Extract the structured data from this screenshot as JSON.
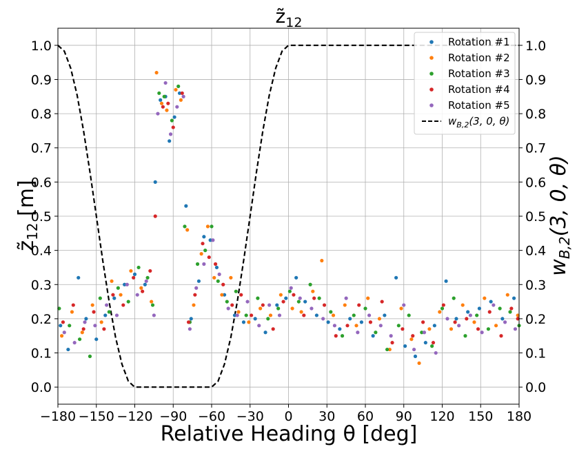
{
  "chart_data": {
    "type": "scatter",
    "title": "z̃",
    "title_sub": "12",
    "xlabel": "Relative Heading θ [deg]",
    "ylabel": "z̃",
    "ylabel_sub": "12",
    "ylabel_unit": " [m]",
    "y2label": "w",
    "y2label_sub": "B,2",
    "y2label_args": "(3, 0, θ)",
    "xlim": [
      -180,
      180
    ],
    "ylim": [
      -0.05,
      1.05
    ],
    "y2lim": [
      -0.05,
      1.05
    ],
    "xticks": [
      -180,
      -150,
      -120,
      -90,
      -60,
      -30,
      0,
      30,
      60,
      90,
      120,
      150,
      180
    ],
    "xtick_labels": [
      "−180",
      "−150",
      "−120",
      "−90",
      "−60",
      "−30",
      "0",
      "30",
      "60",
      "90",
      "120",
      "150",
      "180"
    ],
    "yticks": [
      0,
      0.1,
      0.2,
      0.3,
      0.4,
      0.5,
      0.6,
      0.7,
      0.8,
      0.9,
      1.0
    ],
    "ytick_labels": [
      "0.0",
      "0.1",
      "0.2",
      "0.3",
      "0.4",
      "0.5",
      "0.6",
      "0.7",
      "0.8",
      "0.9",
      "1.0"
    ],
    "grid": true,
    "legend_position": "top-right",
    "series": [
      {
        "name": "Rotation #1",
        "color": "#1f77b4",
        "points": [
          [
            -178,
            0.18
          ],
          [
            -172,
            0.11
          ],
          [
            -164,
            0.32
          ],
          [
            -158,
            0.2
          ],
          [
            -150,
            0.14
          ],
          [
            -143,
            0.21
          ],
          [
            -136,
            0.26
          ],
          [
            -128,
            0.3
          ],
          [
            -120,
            0.33
          ],
          [
            -112,
            0.3
          ],
          [
            -104,
            0.6
          ],
          [
            -100,
            0.84
          ],
          [
            -96,
            0.85
          ],
          [
            -93,
            0.72
          ],
          [
            -89,
            0.79
          ],
          [
            -85,
            0.86
          ],
          [
            -80,
            0.53
          ],
          [
            -76,
            0.2
          ],
          [
            -70,
            0.31
          ],
          [
            -66,
            0.44
          ],
          [
            -61,
            0.43
          ],
          [
            -56,
            0.35
          ],
          [
            -50,
            0.27
          ],
          [
            -42,
            0.21
          ],
          [
            -35,
            0.19
          ],
          [
            -26,
            0.2
          ],
          [
            -18,
            0.16
          ],
          [
            -9,
            0.24
          ],
          [
            -2,
            0.26
          ],
          [
            6,
            0.32
          ],
          [
            13,
            0.25
          ],
          [
            22,
            0.21
          ],
          [
            31,
            0.19
          ],
          [
            40,
            0.17
          ],
          [
            48,
            0.2
          ],
          [
            57,
            0.19
          ],
          [
            66,
            0.15
          ],
          [
            75,
            0.21
          ],
          [
            84,
            0.32
          ],
          [
            91,
            0.12
          ],
          [
            99,
            0.09
          ],
          [
            107,
            0.13
          ],
          [
            114,
            0.18
          ],
          [
            123,
            0.31
          ],
          [
            131,
            0.2
          ],
          [
            140,
            0.22
          ],
          [
            149,
            0.23
          ],
          [
            158,
            0.25
          ],
          [
            167,
            0.2
          ],
          [
            176,
            0.26
          ]
        ]
      },
      {
        "name": "Rotation #2",
        "color": "#ff7f0e",
        "points": [
          [
            -177,
            0.15
          ],
          [
            -169,
            0.22
          ],
          [
            -161,
            0.16
          ],
          [
            -153,
            0.24
          ],
          [
            -146,
            0.19
          ],
          [
            -138,
            0.31
          ],
          [
            -131,
            0.27
          ],
          [
            -123,
            0.34
          ],
          [
            -115,
            0.29
          ],
          [
            -107,
            0.25
          ],
          [
            -103,
            0.92
          ],
          [
            -99,
            0.83
          ],
          [
            -95,
            0.81
          ],
          [
            -88,
            0.87
          ],
          [
            -84,
            0.84
          ],
          [
            -79,
            0.46
          ],
          [
            -74,
            0.24
          ],
          [
            -68,
            0.39
          ],
          [
            -63,
            0.47
          ],
          [
            -58,
            0.32
          ],
          [
            -52,
            0.27
          ],
          [
            -45,
            0.32
          ],
          [
            -39,
            0.22
          ],
          [
            -31,
            0.19
          ],
          [
            -22,
            0.23
          ],
          [
            -14,
            0.21
          ],
          [
            -6,
            0.27
          ],
          [
            3,
            0.23
          ],
          [
            10,
            0.22
          ],
          [
            19,
            0.28
          ],
          [
            26,
            0.37
          ],
          [
            35,
            0.21
          ],
          [
            44,
            0.24
          ],
          [
            53,
            0.18
          ],
          [
            62,
            0.26
          ],
          [
            71,
            0.2
          ],
          [
            79,
            0.11
          ],
          [
            88,
            0.23
          ],
          [
            96,
            0.14
          ],
          [
            102,
            0.07
          ],
          [
            110,
            0.17
          ],
          [
            118,
            0.22
          ],
          [
            127,
            0.17
          ],
          [
            136,
            0.24
          ],
          [
            145,
            0.19
          ],
          [
            153,
            0.26
          ],
          [
            162,
            0.18
          ],
          [
            171,
            0.27
          ],
          [
            179,
            0.21
          ]
        ]
      },
      {
        "name": "Rotation #3",
        "color": "#2ca02c",
        "points": [
          [
            -179,
            0.23
          ],
          [
            -171,
            0.18
          ],
          [
            -163,
            0.14
          ],
          [
            -155,
            0.09
          ],
          [
            -147,
            0.26
          ],
          [
            -140,
            0.22
          ],
          [
            -133,
            0.29
          ],
          [
            -125,
            0.25
          ],
          [
            -117,
            0.35
          ],
          [
            -110,
            0.32
          ],
          [
            -106,
            0.24
          ],
          [
            -101,
            0.86
          ],
          [
            -97,
            0.85
          ],
          [
            -91,
            0.78
          ],
          [
            -86,
            0.88
          ],
          [
            -81,
            0.47
          ],
          [
            -77,
            0.19
          ],
          [
            -71,
            0.36
          ],
          [
            -65,
            0.4
          ],
          [
            -60,
            0.47
          ],
          [
            -55,
            0.31
          ],
          [
            -48,
            0.25
          ],
          [
            -41,
            0.28
          ],
          [
            -33,
            0.21
          ],
          [
            -24,
            0.26
          ],
          [
            -16,
            0.2
          ],
          [
            -8,
            0.23
          ],
          [
            1,
            0.28
          ],
          [
            8,
            0.25
          ],
          [
            17,
            0.3
          ],
          [
            24,
            0.26
          ],
          [
            33,
            0.22
          ],
          [
            42,
            0.15
          ],
          [
            51,
            0.21
          ],
          [
            60,
            0.23
          ],
          [
            68,
            0.16
          ],
          [
            77,
            0.11
          ],
          [
            86,
            0.18
          ],
          [
            94,
            0.21
          ],
          [
            104,
            0.16
          ],
          [
            112,
            0.12
          ],
          [
            120,
            0.23
          ],
          [
            129,
            0.26
          ],
          [
            138,
            0.15
          ],
          [
            147,
            0.21
          ],
          [
            156,
            0.17
          ],
          [
            165,
            0.23
          ],
          [
            173,
            0.22
          ],
          [
            180,
            0.18
          ]
        ]
      },
      {
        "name": "Rotation #4",
        "color": "#d62728",
        "points": [
          [
            -176,
            0.19
          ],
          [
            -168,
            0.24
          ],
          [
            -160,
            0.17
          ],
          [
            -152,
            0.22
          ],
          [
            -144,
            0.17
          ],
          [
            -137,
            0.27
          ],
          [
            -129,
            0.24
          ],
          [
            -121,
            0.32
          ],
          [
            -114,
            0.28
          ],
          [
            -108,
            0.34
          ],
          [
            -104,
            0.5
          ],
          [
            -98,
            0.82
          ],
          [
            -94,
            0.83
          ],
          [
            -90,
            0.76
          ],
          [
            -83,
            0.86
          ],
          [
            -78,
            0.19
          ],
          [
            -73,
            0.27
          ],
          [
            -67,
            0.42
          ],
          [
            -62,
            0.38
          ],
          [
            -57,
            0.36
          ],
          [
            -51,
            0.3
          ],
          [
            -44,
            0.24
          ],
          [
            -37,
            0.27
          ],
          [
            -29,
            0.21
          ],
          [
            -20,
            0.24
          ],
          [
            -12,
            0.17
          ],
          [
            -4,
            0.25
          ],
          [
            4,
            0.27
          ],
          [
            12,
            0.21
          ],
          [
            20,
            0.26
          ],
          [
            28,
            0.24
          ],
          [
            37,
            0.15
          ],
          [
            46,
            0.18
          ],
          [
            55,
            0.24
          ],
          [
            64,
            0.19
          ],
          [
            73,
            0.25
          ],
          [
            81,
            0.13
          ],
          [
            89,
            0.17
          ],
          [
            97,
            0.15
          ],
          [
            105,
            0.19
          ],
          [
            113,
            0.13
          ],
          [
            121,
            0.24
          ],
          [
            130,
            0.19
          ],
          [
            139,
            0.2
          ],
          [
            148,
            0.17
          ],
          [
            157,
            0.22
          ],
          [
            166,
            0.15
          ],
          [
            174,
            0.23
          ],
          [
            179,
            0.2
          ]
        ]
      },
      {
        "name": "Rotation #5",
        "color": "#9467bd",
        "points": [
          [
            -175,
            0.16
          ],
          [
            -167,
            0.13
          ],
          [
            -159,
            0.19
          ],
          [
            -151,
            0.18
          ],
          [
            -142,
            0.24
          ],
          [
            -134,
            0.21
          ],
          [
            -126,
            0.3
          ],
          [
            -118,
            0.27
          ],
          [
            -111,
            0.31
          ],
          [
            -105,
            0.21
          ],
          [
            -102,
            0.8
          ],
          [
            -96,
            0.89
          ],
          [
            -92,
            0.74
          ],
          [
            -87,
            0.82
          ],
          [
            -82,
            0.85
          ],
          [
            -77,
            0.17
          ],
          [
            -72,
            0.29
          ],
          [
            -66,
            0.36
          ],
          [
            -59,
            0.43
          ],
          [
            -54,
            0.33
          ],
          [
            -47,
            0.23
          ],
          [
            -40,
            0.21
          ],
          [
            -32,
            0.25
          ],
          [
            -23,
            0.18
          ],
          [
            -15,
            0.24
          ],
          [
            -7,
            0.21
          ],
          [
            2,
            0.29
          ],
          [
            9,
            0.26
          ],
          [
            18,
            0.23
          ],
          [
            27,
            0.2
          ],
          [
            36,
            0.18
          ],
          [
            45,
            0.26
          ],
          [
            54,
            0.16
          ],
          [
            63,
            0.21
          ],
          [
            72,
            0.18
          ],
          [
            80,
            0.15
          ],
          [
            90,
            0.24
          ],
          [
            98,
            0.11
          ],
          [
            106,
            0.16
          ],
          [
            115,
            0.1
          ],
          [
            124,
            0.2
          ],
          [
            133,
            0.18
          ],
          [
            142,
            0.21
          ],
          [
            151,
            0.16
          ],
          [
            160,
            0.24
          ],
          [
            169,
            0.19
          ],
          [
            177,
            0.17
          ]
        ]
      }
    ],
    "line_series": {
      "name": "w_{B,2}(3, 0, θ)",
      "legend_label_main": "w",
      "legend_label_sub": "B,2",
      "legend_label_args": "(3, 0, θ)",
      "color": "#000000",
      "style": "dashed",
      "points": [
        [
          -180,
          1.0
        ],
        [
          -175,
          0.983
        ],
        [
          -170,
          0.933
        ],
        [
          -165,
          0.854
        ],
        [
          -160,
          0.75
        ],
        [
          -155,
          0.629
        ],
        [
          -150,
          0.5
        ],
        [
          -145,
          0.371
        ],
        [
          -140,
          0.25
        ],
        [
          -135,
          0.146
        ],
        [
          -130,
          0.067
        ],
        [
          -125,
          0.017
        ],
        [
          -120,
          0.0
        ],
        [
          -60,
          0.0
        ],
        [
          -55,
          0.017
        ],
        [
          -50,
          0.067
        ],
        [
          -45,
          0.146
        ],
        [
          -40,
          0.25
        ],
        [
          -35,
          0.371
        ],
        [
          -30,
          0.5
        ],
        [
          -25,
          0.629
        ],
        [
          -20,
          0.75
        ],
        [
          -15,
          0.854
        ],
        [
          -10,
          0.933
        ],
        [
          -5,
          0.983
        ],
        [
          0,
          1.0
        ],
        [
          180,
          1.0
        ]
      ]
    }
  }
}
